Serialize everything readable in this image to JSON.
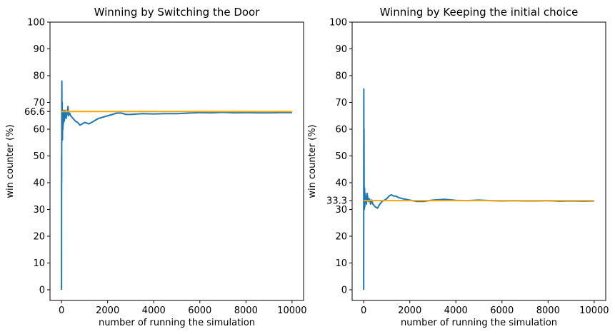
{
  "chart_data": [
    {
      "type": "line",
      "title": "Winning by Switching the Door",
      "xlabel": "number of running the simulation",
      "ylabel": "win counter (%)",
      "xlim": [
        -500,
        10500
      ],
      "ylim": [
        -4,
        100
      ],
      "xticks": [
        0,
        2000,
        4000,
        6000,
        8000,
        10000
      ],
      "xtick_labels": [
        "0",
        "2000",
        "4000",
        "6000",
        "8000",
        "10000"
      ],
      "yticks": [
        0,
        10,
        20,
        30,
        40,
        50,
        60,
        70,
        80,
        90,
        100
      ],
      "ytick_labels": [
        "0",
        "10",
        "20",
        "30",
        "40",
        "50",
        "60",
        "70",
        "80",
        "90",
        "100"
      ],
      "extra_ytick": {
        "value": 66.6,
        "label": "66.6"
      },
      "grid": false,
      "series": [
        {
          "color": "#1f77b4",
          "x": [
            0,
            3,
            6,
            10,
            15,
            20,
            30,
            40,
            50,
            60,
            70,
            80,
            100,
            120,
            150,
            180,
            200,
            240,
            280,
            300,
            350,
            400,
            500,
            600,
            700,
            800,
            900,
            1000,
            1200,
            1400,
            1600,
            1800,
            2000,
            2200,
            2400,
            2600,
            2800,
            3000,
            3500,
            4000,
            4500,
            5000,
            5500,
            6000,
            6500,
            7000,
            7500,
            8000,
            8500,
            9000,
            9500,
            10000
          ],
          "y": [
            0,
            50,
            40,
            67,
            78,
            60,
            70,
            56,
            66,
            60,
            64,
            62,
            67,
            63,
            67,
            66,
            64,
            66,
            68.5,
            65,
            66,
            65,
            64,
            63,
            62.5,
            61.5,
            62,
            62.5,
            62,
            63,
            64,
            64.5,
            65,
            65.5,
            66,
            66,
            65.5,
            65.5,
            65.8,
            65.7,
            65.8,
            65.8,
            66,
            66.2,
            66.1,
            66.3,
            66.1,
            66.2,
            66.1,
            66.1,
            66.2,
            66.2
          ]
        },
        {
          "color": "#ffa500",
          "x": [
            0,
            10000
          ],
          "y": [
            66.6,
            66.6
          ]
        }
      ]
    },
    {
      "type": "line",
      "title": "Winning by Keeping the initial choice",
      "xlabel": "number of running the simulation",
      "ylabel": "win counter (%)",
      "xlim": [
        -500,
        10500
      ],
      "ylim": [
        -4,
        100
      ],
      "xticks": [
        0,
        2000,
        4000,
        6000,
        8000,
        10000
      ],
      "xtick_labels": [
        "0",
        "2000",
        "4000",
        "6000",
        "8000",
        "10000"
      ],
      "yticks": [
        0,
        10,
        20,
        30,
        40,
        50,
        60,
        70,
        80,
        90,
        100
      ],
      "ytick_labels": [
        "0",
        "10",
        "20",
        "30",
        "40",
        "50",
        "60",
        "70",
        "80",
        "90",
        "100"
      ],
      "extra_ytick": {
        "value": 33.3,
        "label": "33.3"
      },
      "grid": false,
      "series": [
        {
          "color": "#1f77b4",
          "x": [
            0,
            3,
            6,
            10,
            15,
            20,
            30,
            40,
            50,
            60,
            80,
            100,
            120,
            150,
            200,
            250,
            300,
            350,
            400,
            500,
            600,
            700,
            800,
            900,
            1000,
            1100,
            1200,
            1300,
            1400,
            1500,
            1700,
            2000,
            2300,
            2600,
            3000,
            3500,
            4000,
            4500,
            5000,
            5500,
            6000,
            6500,
            7000,
            7500,
            8000,
            8500,
            9000,
            9500,
            10000
          ],
          "y": [
            0,
            50,
            75,
            33,
            60,
            40,
            30,
            38,
            31,
            36,
            33,
            35,
            32,
            36,
            33,
            34,
            32,
            33.5,
            32,
            31,
            30.5,
            32,
            33,
            33.5,
            34,
            35,
            35.5,
            35,
            35,
            34.5,
            34,
            33.5,
            33,
            33,
            33.5,
            33.8,
            33.4,
            33.3,
            33.5,
            33.3,
            33.2,
            33.3,
            33.2,
            33.2,
            33.3,
            33.1,
            33.2,
            33.1,
            33.2
          ]
        },
        {
          "color": "#ffa500",
          "x": [
            0,
            10000
          ],
          "y": [
            33.3,
            33.3
          ]
        }
      ]
    }
  ]
}
